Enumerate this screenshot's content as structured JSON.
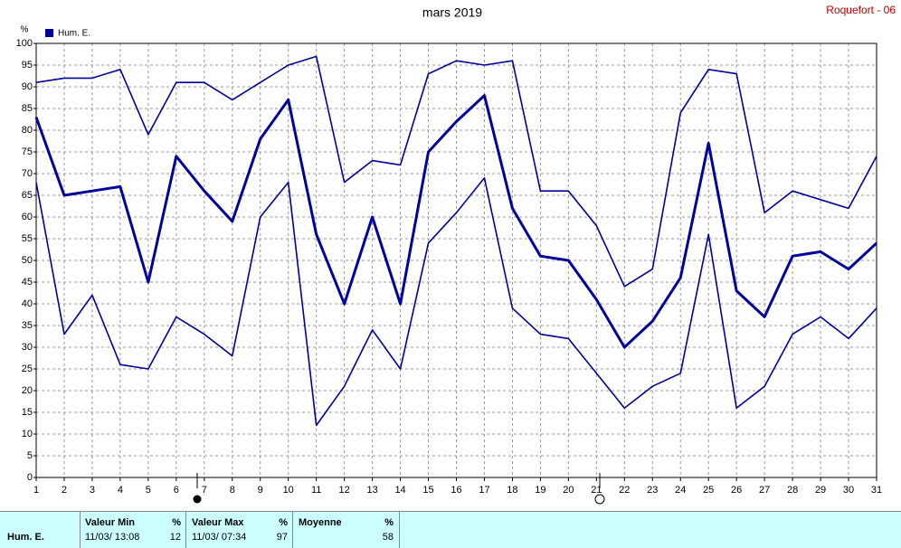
{
  "station": "Roquefort - 06",
  "chart_data": {
    "type": "line",
    "title": "mars 2019",
    "y_label": "%",
    "x": [
      1,
      2,
      3,
      4,
      5,
      6,
      7,
      8,
      9,
      10,
      11,
      12,
      13,
      14,
      15,
      16,
      17,
      18,
      19,
      20,
      21,
      22,
      23,
      24,
      25,
      26,
      27,
      28,
      29,
      30,
      31
    ],
    "xlim": [
      1,
      31
    ],
    "xticks": [
      1,
      2,
      3,
      4,
      5,
      6,
      7,
      8,
      9,
      10,
      11,
      12,
      13,
      14,
      15,
      16,
      17,
      18,
      19,
      20,
      21,
      22,
      23,
      24,
      25,
      26,
      27,
      28,
      29,
      30,
      31
    ],
    "ylim": [
      0,
      100
    ],
    "yticks": [
      0,
      5,
      10,
      15,
      20,
      25,
      30,
      35,
      40,
      45,
      50,
      55,
      60,
      65,
      70,
      75,
      80,
      85,
      90,
      95,
      100
    ],
    "grid": true,
    "series": [
      {
        "color": "#0000a0",
        "values": [
          91,
          92,
          92,
          94,
          79,
          91,
          91,
          87,
          91,
          95,
          97,
          68,
          73,
          72,
          93,
          96,
          95,
          96,
          66,
          66,
          58,
          44,
          48,
          84,
          94,
          93,
          61,
          66,
          64,
          62,
          74
        ]
      },
      {
        "name": "Hum. E.",
        "color": "#0000a0",
        "values": [
          83,
          65,
          66,
          67,
          45,
          74,
          66,
          59,
          78,
          87,
          56,
          40,
          60,
          40,
          75,
          82,
          88,
          62,
          51,
          50,
          41,
          30,
          36,
          46,
          77,
          43,
          37,
          51,
          52,
          48,
          54
        ]
      },
      {
        "color": "#0000a0",
        "values": [
          68,
          33,
          42,
          26,
          25,
          37,
          33,
          28,
          60,
          68,
          12,
          21,
          34,
          25,
          54,
          61,
          69,
          39,
          33,
          32,
          24,
          16,
          21,
          24,
          56,
          16,
          21,
          33,
          37,
          32,
          39
        ]
      }
    ]
  },
  "summary": {
    "row_label": "Hum. E.",
    "columns": [
      {
        "title": "Valeur Min",
        "unit": "%",
        "date": "11/03/ 13:08",
        "value": 12
      },
      {
        "title": "Valeur Max",
        "unit": "%",
        "date": "11/03/ 07:34",
        "value": 97
      },
      {
        "title": "Moyenne",
        "unit": "%",
        "value": 58
      }
    ]
  }
}
